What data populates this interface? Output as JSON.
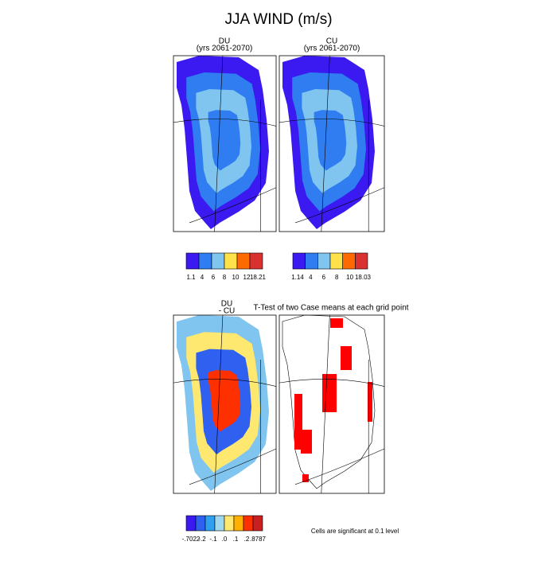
{
  "title": "JJA WIND (m/s)",
  "panels": [
    {
      "title": "DU",
      "subtitle": "(yrs 2061-2070)"
    },
    {
      "title": "CU",
      "subtitle": "(yrs 2061-2070)"
    },
    {
      "title": "DU",
      "subtitle": "- CU"
    },
    {
      "title": "T-Test of two Case means at each grid point"
    }
  ],
  "colorbars": [
    {
      "colors": [
        "#3a1af0",
        "#2f7df0",
        "#80c4f0",
        "#ffe14a",
        "#ff6a00",
        "#d93030"
      ],
      "labels": [
        "1.1",
        "4",
        "6",
        "8",
        "10",
        "12",
        "18.21"
      ]
    },
    {
      "colors": [
        "#3a1af0",
        "#2f7df0",
        "#80c4f0",
        "#ffe14a",
        "#ff6a00",
        "#d93030"
      ],
      "labels": [
        "1.14",
        "4",
        "6",
        "8",
        "10",
        "18.03"
      ]
    },
    {
      "colors": [
        "#3a1af0",
        "#2f60f0",
        "#2fa0f0",
        "#a0d8f0",
        "#ffe870",
        "#ffb000",
        "#ff3000",
        "#c82020"
      ],
      "labels": [
        "-.7022",
        "-.2",
        "-.1",
        ".0",
        ".1",
        ".2",
        ".8787"
      ]
    }
  ],
  "note": "Cells are significant at 0.1 level"
}
